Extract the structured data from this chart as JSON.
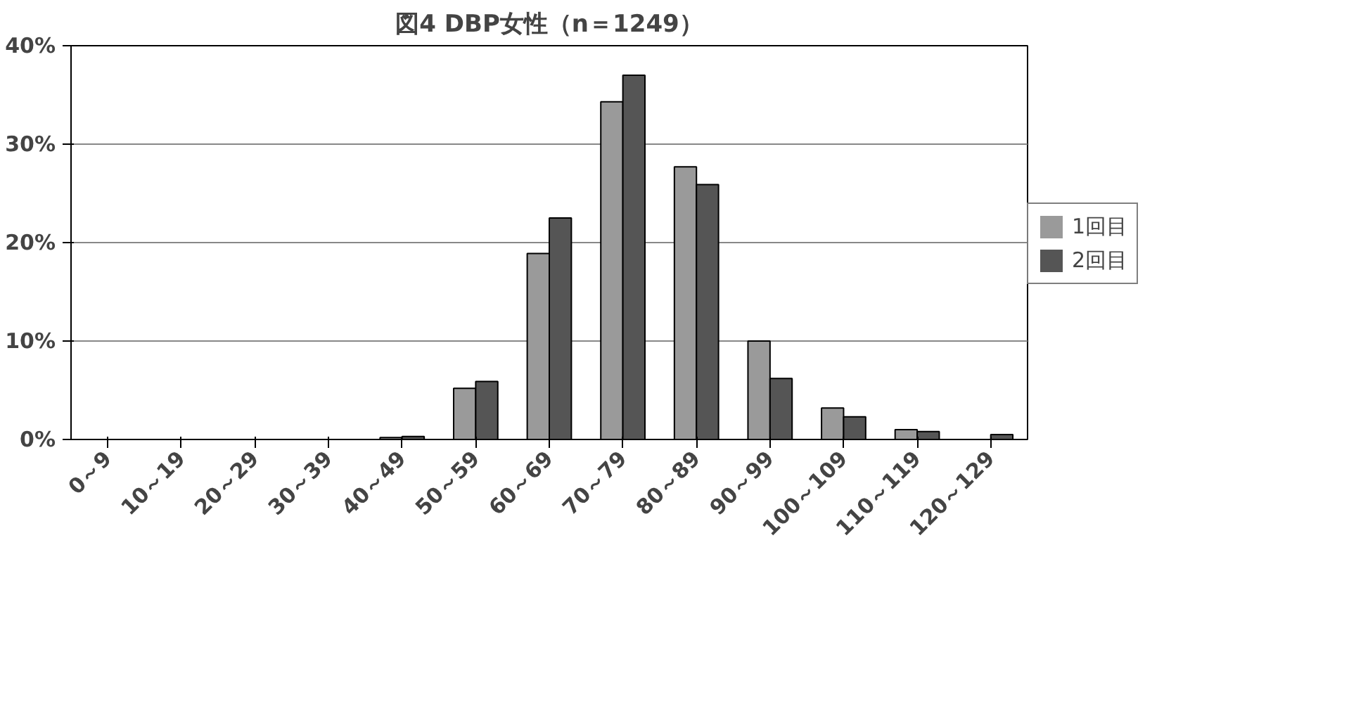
{
  "chart_data": {
    "type": "bar",
    "title": "図4 DBP女性（n＝1249）",
    "categories": [
      "0～9",
      "10～19",
      "20～29",
      "30～39",
      "40～49",
      "50～59",
      "60～69",
      "70～79",
      "80～89",
      "90～99",
      "100～109",
      "110～119",
      "120～129"
    ],
    "series": [
      {
        "name": "1回目",
        "color": "#9a9a9a",
        "values": [
          0,
          0,
          0,
          0,
          0.2,
          5.2,
          18.9,
          34.3,
          27.7,
          10.0,
          3.2,
          1.0,
          0
        ]
      },
      {
        "name": "2回目",
        "color": "#555555",
        "values": [
          0,
          0,
          0,
          0,
          0.3,
          5.9,
          22.5,
          37.0,
          25.9,
          6.2,
          2.3,
          0.8,
          0.5
        ]
      }
    ],
    "ylim": [
      0,
      40
    ],
    "yticks": [
      {
        "value": 0,
        "label": "0%"
      },
      {
        "value": 10,
        "label": "10%"
      },
      {
        "value": 20,
        "label": "20%"
      },
      {
        "value": 30,
        "label": "30%"
      },
      {
        "value": 40,
        "label": "40%"
      }
    ],
    "grid": "y",
    "legend": "right"
  }
}
